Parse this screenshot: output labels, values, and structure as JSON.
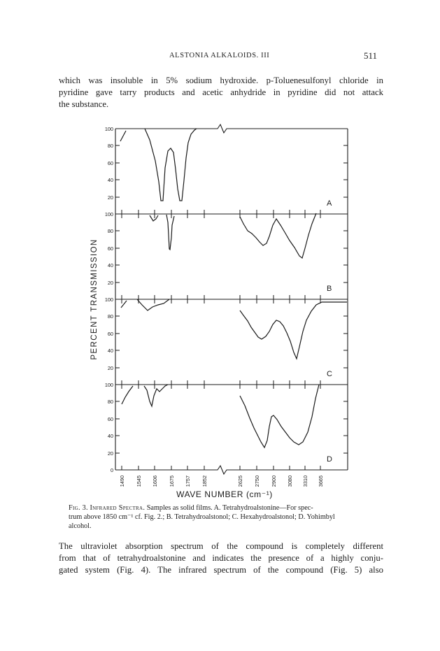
{
  "header": {
    "running_title": "ALSTONIA ALKALOIDS. III",
    "page_number": "511"
  },
  "paragraph1": {
    "lines": [
      "which was insoluble in 5% sodium hydroxide. p-Toluenesulfonyl chloride in",
      "pyridine gave tarry products and acetic anhydride in pyridine did not attack",
      "the substance."
    ]
  },
  "figure": {
    "y_axis_label": "PERCENT TRANSMISSION",
    "x_axis_label": "WAVE NUMBER (cm⁻¹)",
    "x_ticks": [
      "1490",
      "1545",
      "1606",
      "1675",
      "1757",
      "1852",
      "2625",
      "2750",
      "2900",
      "3080",
      "3310",
      "3665"
    ],
    "panels": [
      {
        "letter": "A",
        "ticks": [
          "100",
          "80",
          "60",
          "40",
          "20"
        ]
      },
      {
        "letter": "B",
        "ticks": [
          "100",
          "80",
          "60",
          "40",
          "20"
        ]
      },
      {
        "letter": "C",
        "ticks": [
          "100",
          "80",
          "60",
          "40",
          "20"
        ]
      },
      {
        "letter": "D",
        "ticks": [
          "100",
          "80",
          "60",
          "40",
          "20",
          "0"
        ]
      }
    ],
    "caption": {
      "fig_label": "Fig. 3.",
      "title": "Infrared Spectra.",
      "line1_rest": " Samples as solid films. A. Tetrahydroalstonine—For spec-",
      "line2": "trum above 1850 cm⁻¹ cf. Fig. 2.; B. Tetrahydroalstonol; C. Hexahydroalstonol; D. Yohimbyl",
      "line3": "alcohol."
    }
  },
  "paragraph2": {
    "lines": [
      "The ultraviolet absorption spectrum of the compound is completely different",
      "from that of tetrahydroalstonine and indicates the presence of a highly conju-",
      "gated system (Fig. 4). The infrared spectrum of the compound (Fig. 5) also"
    ]
  }
}
